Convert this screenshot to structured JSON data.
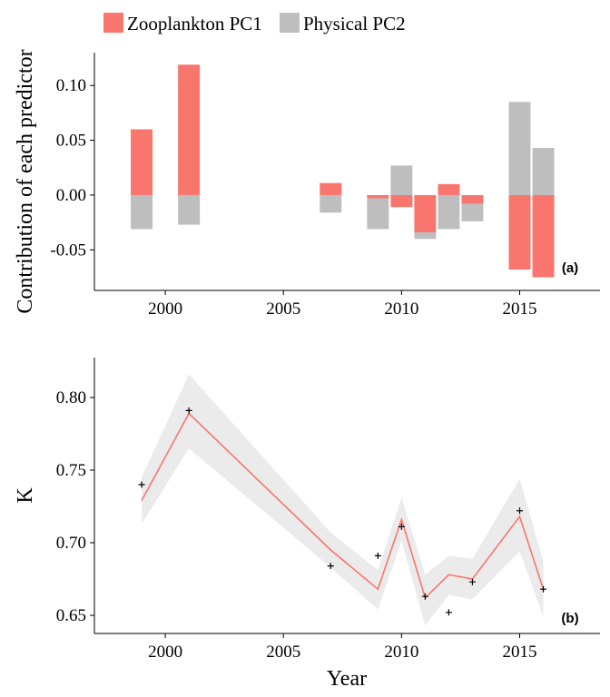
{
  "colors": {
    "zooplankton": "#F8766D",
    "physical": "#BEBEBE",
    "fit_line": "#F8766D",
    "ribbon": "#EBEBEB",
    "axis": "#000000"
  },
  "legend": {
    "items": [
      {
        "label": "Zooplankton PC1",
        "color_key": "zooplankton"
      },
      {
        "label": "Physical PC2",
        "color_key": "physical"
      }
    ]
  },
  "chart_data": [
    {
      "panel": "(a)",
      "type": "bar",
      "stacked": "diverging",
      "ylabel": "Contribution of each predictor",
      "xlabel": "",
      "xlim": [
        1997,
        2018.4
      ],
      "ylim": [
        -0.087,
        0.13
      ],
      "x_ticks": [
        2000,
        2005,
        2010,
        2015
      ],
      "y_ticks": [
        -0.05,
        0.0,
        0.05,
        0.1
      ],
      "y_tick_labels": [
        "-0.05",
        "0.00",
        "0.05",
        "0.10"
      ],
      "x_tick_labels": [
        "2000",
        "2005",
        "2010",
        "2015"
      ],
      "x": [
        1999,
        2001,
        2007,
        2009,
        2010,
        2011,
        2012,
        2013,
        2015,
        2016
      ],
      "series": [
        {
          "name": "Zooplankton PC1",
          "color_key": "zooplankton",
          "values": [
            0.06,
            0.119,
            0.011,
            -0.003,
            -0.011,
            -0.034,
            0.01,
            -0.008,
            -0.068,
            -0.075
          ]
        },
        {
          "name": "Physical PC2",
          "color_key": "physical",
          "values": [
            -0.031,
            -0.027,
            -0.016,
            -0.028,
            0.027,
            -0.006,
            -0.031,
            -0.016,
            0.085,
            0.043
          ]
        }
      ]
    },
    {
      "panel": "(b)",
      "type": "line",
      "ylabel": "K",
      "xlabel": "Year",
      "xlim": [
        1997,
        2018.4
      ],
      "ylim": [
        0.6375,
        0.8275
      ],
      "x_ticks": [
        2000,
        2005,
        2010,
        2015
      ],
      "y_ticks": [
        0.65,
        0.7,
        0.75,
        0.8
      ],
      "y_tick_labels": [
        "0.65",
        "0.70",
        "0.75",
        "0.80"
      ],
      "x_tick_labels": [
        "2000",
        "2005",
        "2010",
        "2015"
      ],
      "fit": {
        "x": [
          1999,
          2001,
          2007,
          2009,
          2010,
          2011,
          2012,
          2013,
          2015,
          2016
        ],
        "y": [
          0.729,
          0.789,
          0.695,
          0.668,
          0.716,
          0.662,
          0.678,
          0.675,
          0.718,
          0.668
        ],
        "lower": [
          0.713,
          0.765,
          0.683,
          0.654,
          0.701,
          0.643,
          0.664,
          0.661,
          0.694,
          0.649
        ],
        "upper": [
          0.745,
          0.816,
          0.707,
          0.681,
          0.731,
          0.678,
          0.691,
          0.689,
          0.744,
          0.687
        ]
      },
      "observed": {
        "x": [
          1999,
          2001,
          2007,
          2009,
          2010,
          2011,
          2012,
          2013,
          2015,
          2016
        ],
        "y": [
          0.74,
          0.791,
          0.684,
          0.691,
          0.711,
          0.663,
          0.652,
          0.673,
          0.722,
          0.668
        ]
      }
    }
  ]
}
